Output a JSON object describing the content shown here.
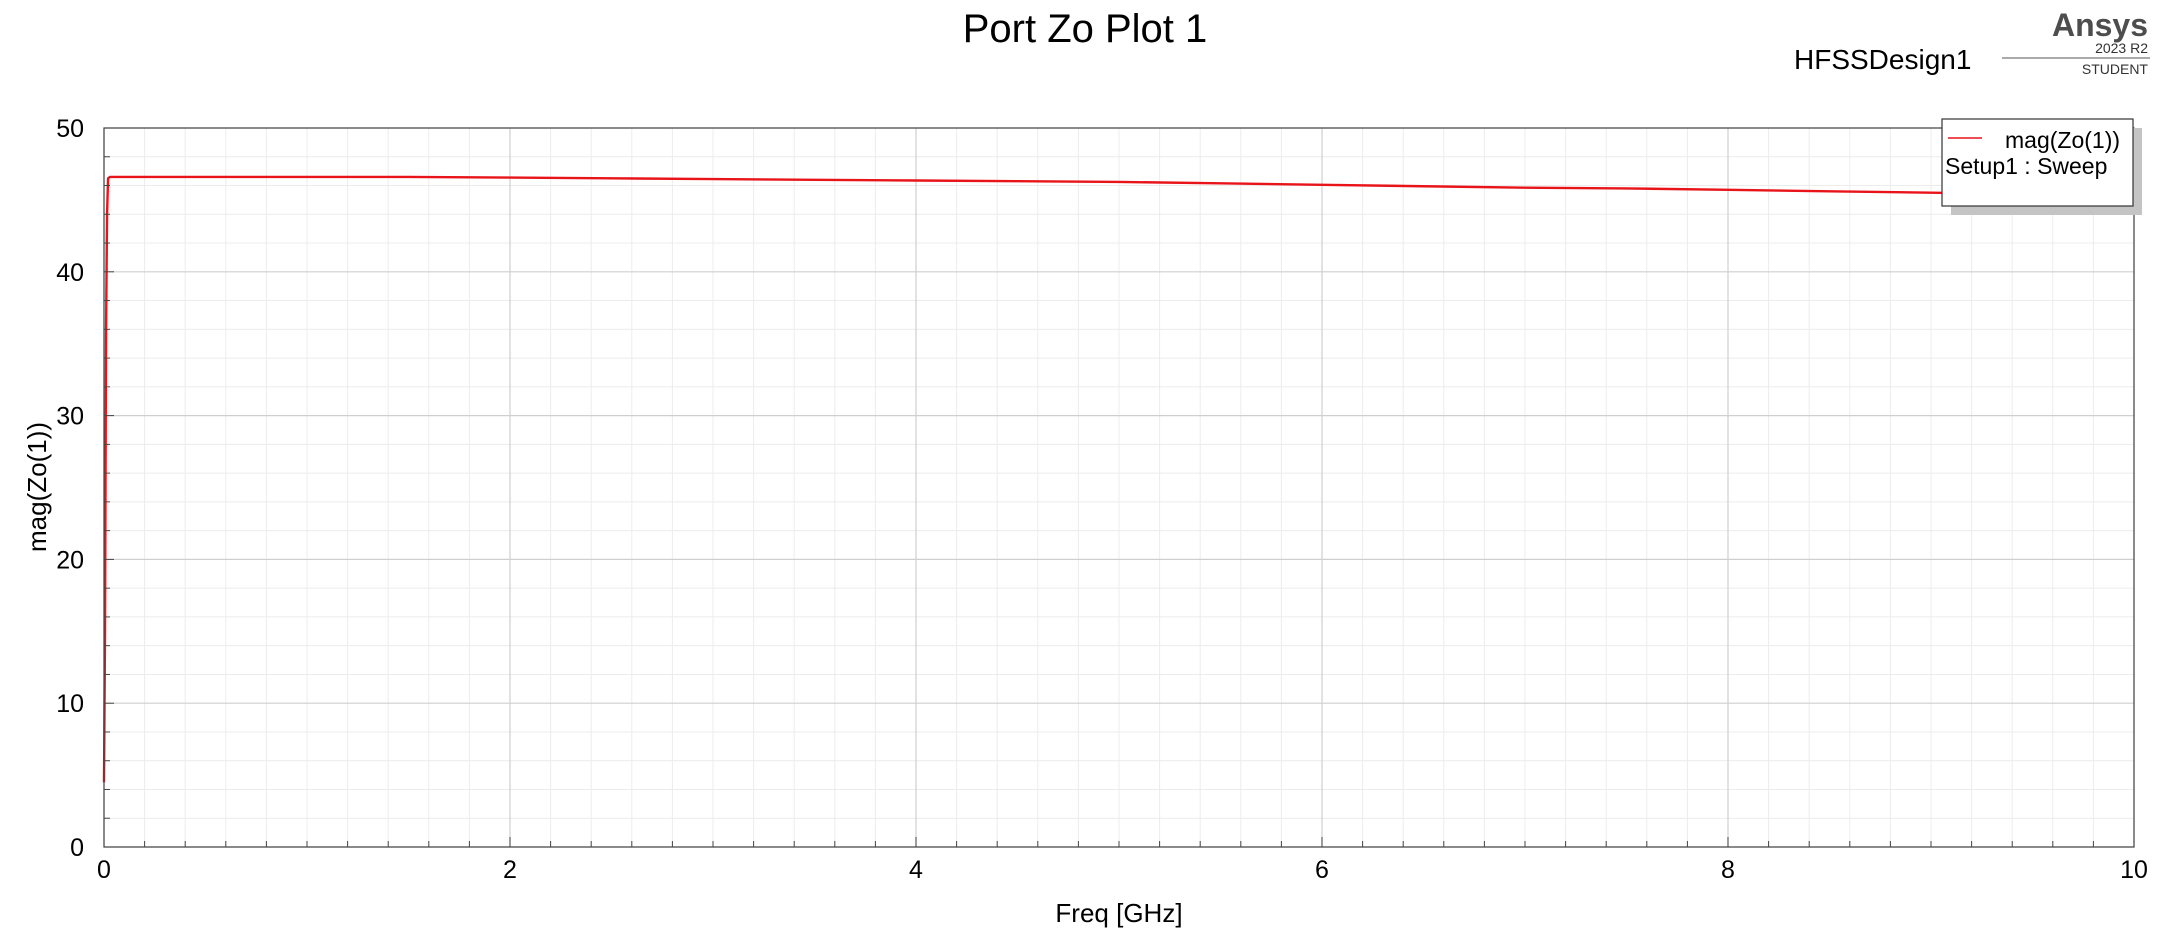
{
  "header": {
    "title": "Port Zo Plot 1",
    "design_name": "HFSSDesign1",
    "brand": "Ansys",
    "version": "2023 R2",
    "edition": "STUDENT"
  },
  "legend": {
    "series_label": "mag(Zo(1))",
    "setup_label": "Setup1 : Sweep",
    "placement": "top-right"
  },
  "chart_data": {
    "type": "line",
    "title": "Port Zo Plot 1",
    "xlabel": "Freq [GHz]",
    "ylabel": "mag(Zo(1))",
    "xlim": [
      0,
      10
    ],
    "ylim": [
      0,
      50
    ],
    "xticks": [
      0,
      2,
      4,
      6,
      8,
      10
    ],
    "yticks": [
      0,
      10,
      20,
      30,
      40,
      50
    ],
    "grid": true,
    "series": [
      {
        "name": "mag(Zo(1))",
        "color": "#e8141a",
        "x": [
          0.0,
          0.005,
          0.01,
          0.015,
          0.02,
          0.03,
          0.05,
          0.1,
          0.5,
          1.0,
          1.5,
          2.0,
          2.5,
          3.0,
          3.5,
          4.0,
          4.5,
          5.0,
          5.5,
          6.0,
          6.5,
          7.0,
          7.5,
          8.0,
          8.5,
          9.0,
          9.5,
          10.0
        ],
        "y": [
          4.5,
          15.0,
          35.5,
          44.0,
          46.5,
          46.6,
          46.6,
          46.6,
          46.6,
          46.6,
          46.6,
          46.55,
          46.5,
          46.45,
          46.4,
          46.35,
          46.3,
          46.25,
          46.15,
          46.05,
          45.95,
          45.85,
          45.8,
          45.7,
          45.6,
          45.5,
          45.4,
          45.3
        ]
      }
    ]
  }
}
